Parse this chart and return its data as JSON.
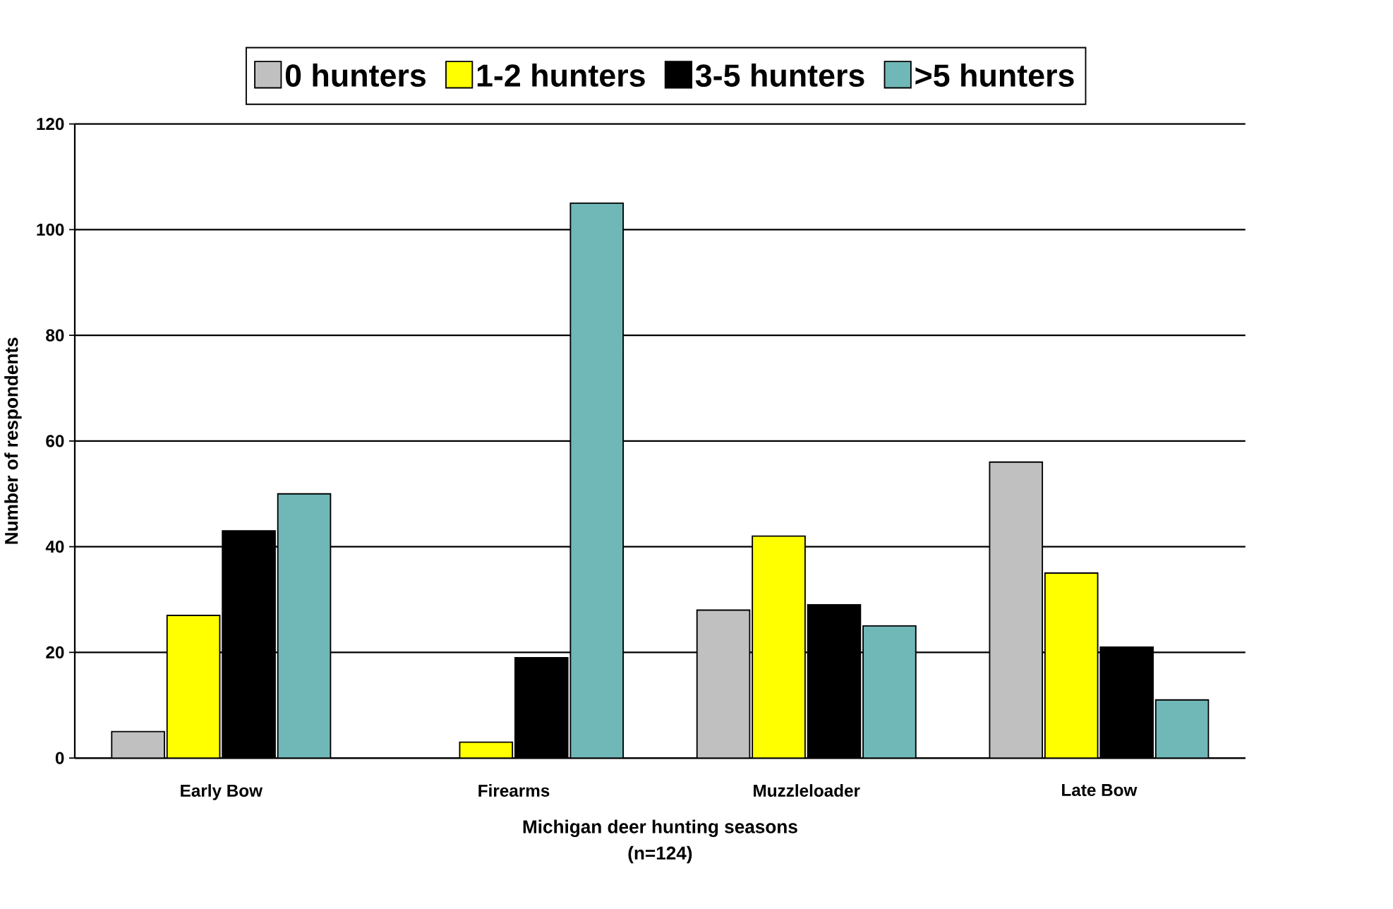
{
  "chart_data": {
    "type": "bar",
    "xlabel": "Michigan deer hunting seasons\n(n=124)",
    "ylabel": "Number of respondents",
    "categories": [
      "Early Bow",
      "Firearms",
      "Muzzleloader",
      "Late Bow"
    ],
    "series": [
      {
        "name": "0 hunters",
        "color": "#c0c0c0",
        "values": [
          5,
          0,
          28,
          56
        ]
      },
      {
        "name": "1-2 hunters",
        "color": "#ffff00",
        "values": [
          27,
          3,
          42,
          35
        ]
      },
      {
        "name": "3-5 hunters",
        "color": "#000000",
        "values": [
          43,
          19,
          29,
          21
        ]
      },
      {
        "name": ">5 hunters",
        "color": "#70b8b8",
        "values": [
          50,
          105,
          25,
          11
        ]
      }
    ],
    "ylim": [
      0,
      120
    ],
    "yticks": [
      0,
      20,
      40,
      60,
      80,
      100,
      120
    ],
    "grid": "y",
    "legend": "top"
  }
}
